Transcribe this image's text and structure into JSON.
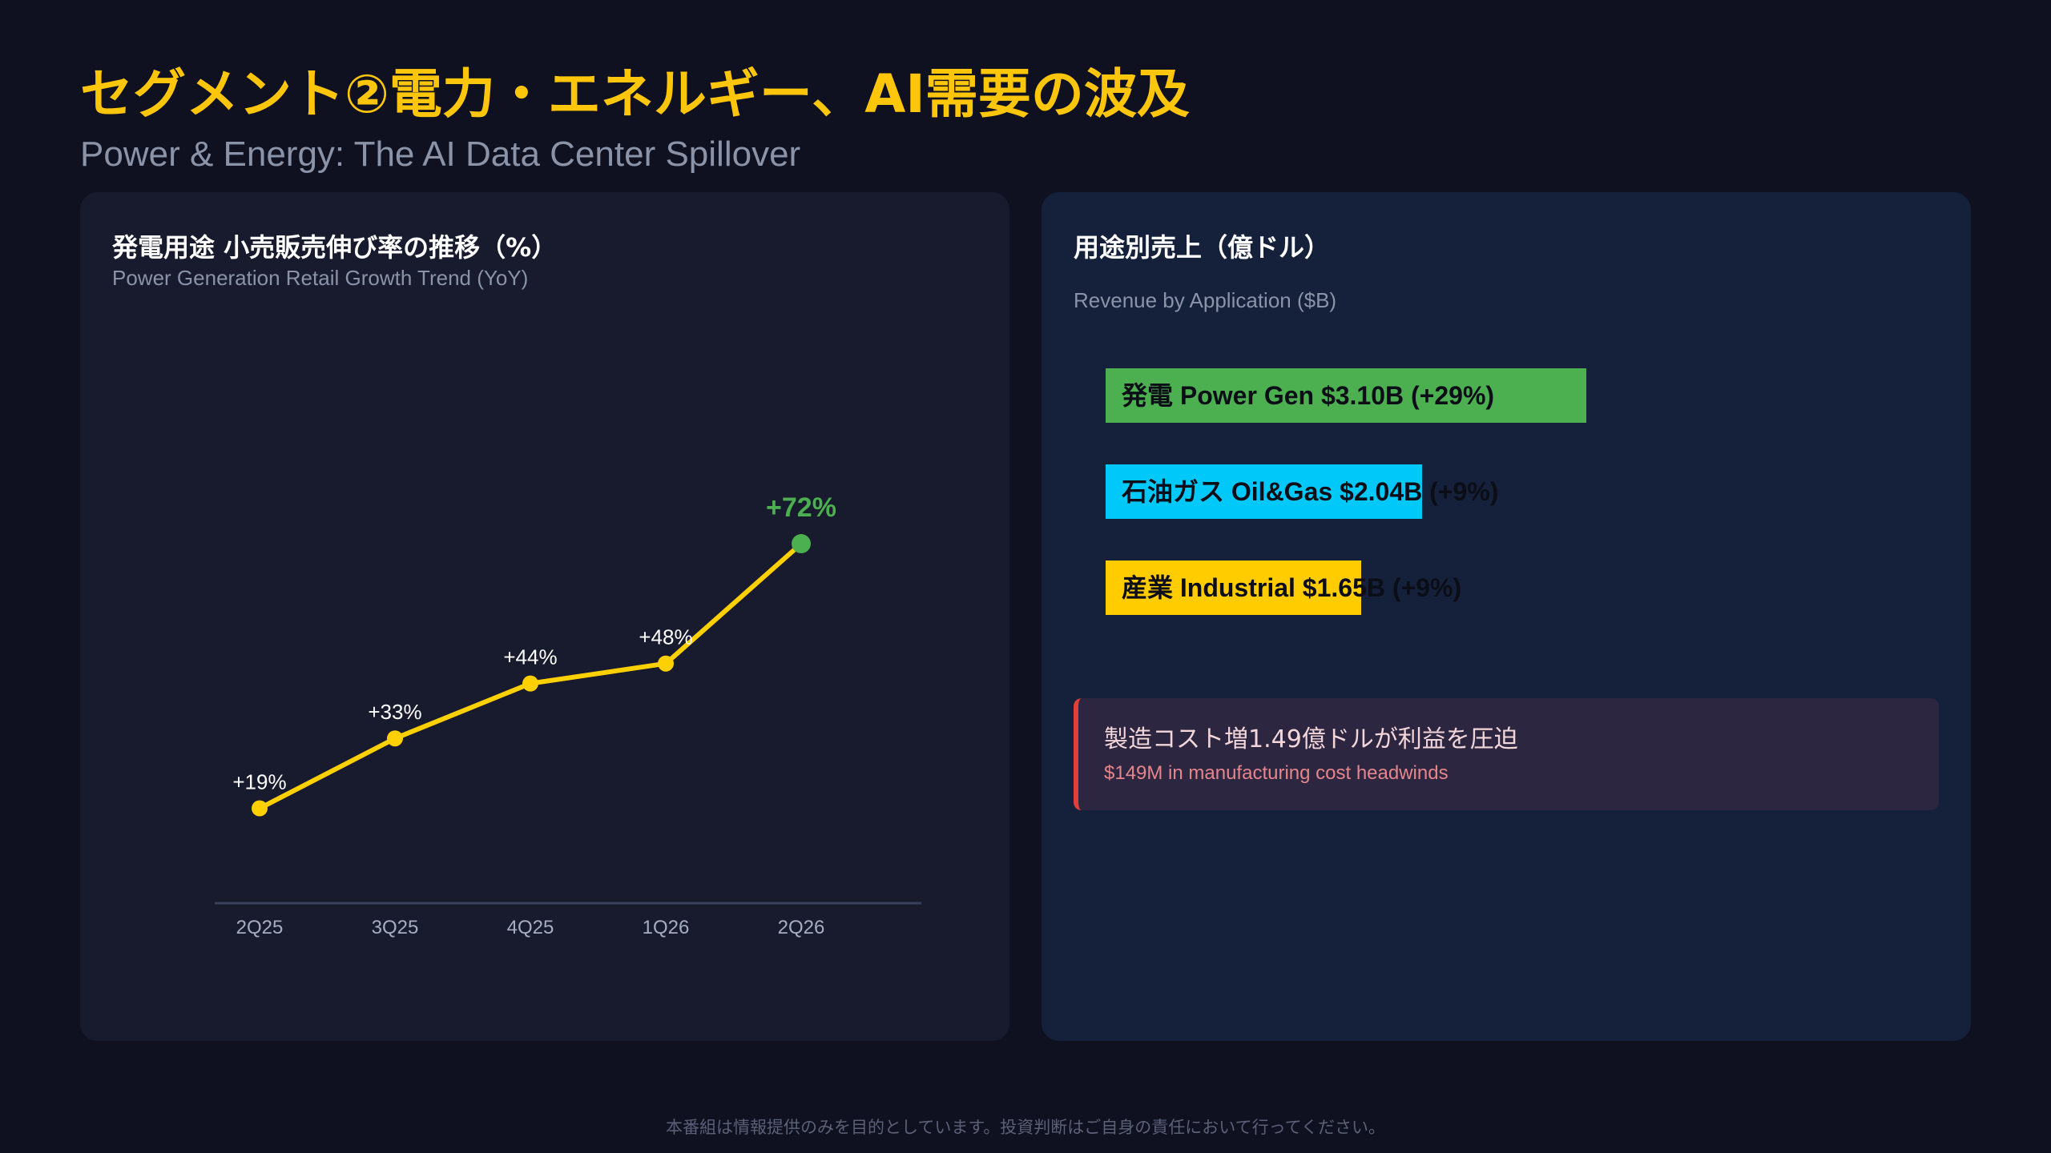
{
  "header": {
    "title": "セグメント②電力・エネルギー、AI需要の波及",
    "subtitle": "Power & Energy: The AI Data Center Spillover"
  },
  "left_card": {
    "title": "発電用途 小売販売伸び率の推移（%）",
    "subtitle": "Power Generation Retail Growth Trend (YoY)"
  },
  "right_card": {
    "title": "用途別売上（億ドル）",
    "subtitle": "Revenue by Application ($B)",
    "bars": [
      {
        "label": "発電 Power Gen $3.10B (+29%)",
        "value": 3.1,
        "color": "#4caf50"
      },
      {
        "label": "石油ガス Oil&Gas $2.04B (+9%)",
        "value": 2.04,
        "color": "#00c8f8"
      },
      {
        "label": "産業 Industrial $1.65B (+9%)",
        "value": 1.65,
        "color": "#ffcc00"
      }
    ],
    "callout": {
      "title": "製造コスト増1.49億ドルが利益を圧迫",
      "subtitle": "$149M in manufacturing cost headwinds",
      "accent": "#e0403a"
    }
  },
  "footer": "本番組は情報提供のみを目的としています。投資判断はご自身の責任において行ってください。",
  "chart_data": [
    {
      "type": "line",
      "categories": [
        "2Q25",
        "3Q25",
        "4Q25",
        "1Q26",
        "2Q26"
      ],
      "values": [
        19,
        33,
        44,
        48,
        72
      ],
      "data_labels": [
        "+19%",
        "+33%",
        "+44%",
        "+48%",
        "+72%"
      ],
      "ylim": [
        0,
        85
      ],
      "line_color": "#ffd000",
      "highlight_color": "#4caf50",
      "grid": false
    },
    {
      "type": "bar",
      "orientation": "horizontal",
      "categories": [
        "発電 Power Gen",
        "石油ガス Oil&Gas",
        "産業 Industrial"
      ],
      "values": [
        3.1,
        2.04,
        1.65
      ],
      "growth": [
        "+29%",
        "+9%",
        "+9%"
      ],
      "colors": [
        "#4caf50",
        "#00c8f8",
        "#ffcc00"
      ]
    }
  ]
}
